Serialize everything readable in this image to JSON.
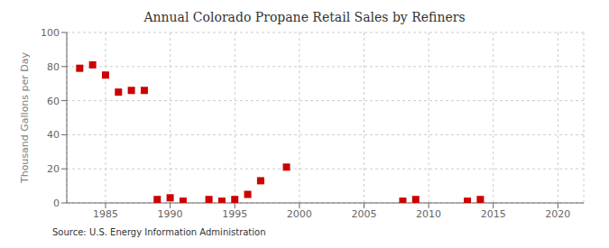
{
  "chart_data": {
    "type": "scatter",
    "title": "Annual Colorado Propane Retail Sales by Refiners",
    "ylabel": "Thousand Gallons per Day",
    "annotations": [
      "Source: U.S. Energy Information Administration"
    ],
    "x": [
      1983,
      1984,
      1985,
      1986,
      1987,
      1988,
      1989,
      1990,
      1991,
      1993,
      1994,
      1995,
      1996,
      1997,
      1999,
      2008,
      2009,
      2013,
      2014
    ],
    "values": [
      79,
      81,
      75,
      65,
      66,
      66,
      2,
      3,
      1,
      2,
      1,
      2,
      5,
      13,
      21,
      1,
      2,
      1,
      2
    ],
    "color": "#cc0000",
    "marker": "square",
    "xlim": [
      1982,
      2022
    ],
    "ylim": [
      0,
      100
    ],
    "xticks": [
      1985,
      1990,
      1995,
      2000,
      2005,
      2010,
      2015,
      2020
    ],
    "yticks": [
      0,
      20,
      40,
      60,
      80,
      100
    ],
    "grid": true
  }
}
